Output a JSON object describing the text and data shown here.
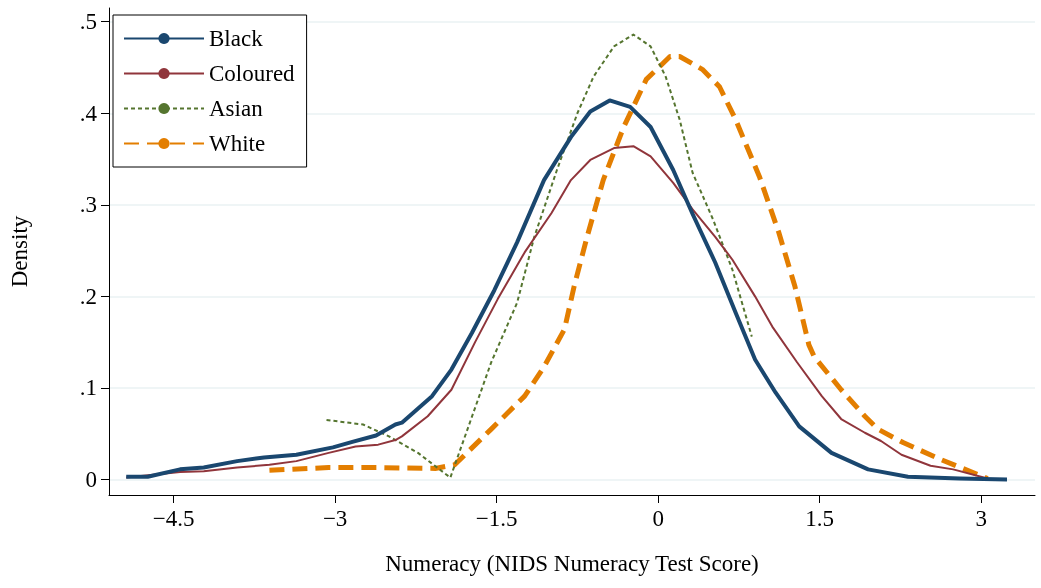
{
  "chart_data": {
    "type": "line",
    "xlabel": "Numeracy (NIDS Numeracy Test Score)",
    "ylabel": "Density",
    "xlim": [
      -5.1,
      3.5
    ],
    "xticks": [
      -4.5,
      -3,
      -1.5,
      0,
      1.5,
      3
    ],
    "ylim": [
      -0.017,
      0.515
    ],
    "yticks": [
      0,
      {
        "value": 0.1,
        "label": ".1"
      },
      {
        "value": 0.2,
        "label": ".2"
      },
      {
        "value": 0.3,
        "label": ".3"
      },
      {
        "value": 0.4,
        "label": ".4"
      },
      {
        "value": 0.5,
        "label": ".5"
      }
    ],
    "grid": "y",
    "legend": "top left",
    "marker": "none",
    "series": [
      {
        "name": "Black",
        "color": "#1a476f",
        "line_style": "solid",
        "x": [
          -4.94,
          -4.74,
          -4.44,
          -4.22,
          -3.91,
          -3.66,
          -3.36,
          -3.02,
          -2.84,
          -2.62,
          -2.44,
          -2.38,
          -2.1,
          -1.92,
          -1.73,
          -1.52,
          -1.31,
          -1.06,
          -0.81,
          -0.63,
          -0.45,
          -0.26,
          -0.07,
          0.14,
          0.32,
          0.53,
          0.72,
          0.9,
          1.09,
          1.31,
          1.61,
          1.95,
          2.32,
          2.8,
          3.24
        ],
        "values": [
          0.003,
          0.003,
          0.011,
          0.013,
          0.02,
          0.024,
          0.027,
          0.035,
          0.041,
          0.048,
          0.06,
          0.062,
          0.091,
          0.12,
          0.16,
          0.207,
          0.259,
          0.327,
          0.374,
          0.402,
          0.414,
          0.407,
          0.385,
          0.338,
          0.29,
          0.237,
          0.182,
          0.131,
          0.095,
          0.058,
          0.029,
          0.011,
          0.003,
          0.001,
          0.0
        ]
      },
      {
        "name": "Coloured",
        "color": "#90353b",
        "line_style": "solid",
        "x": [
          -4.94,
          -4.44,
          -4.22,
          -3.91,
          -3.61,
          -3.36,
          -3.06,
          -2.81,
          -2.6,
          -2.44,
          -2.38,
          -2.14,
          -1.92,
          -1.7,
          -1.49,
          -1.24,
          -0.99,
          -0.81,
          -0.63,
          -0.41,
          -0.23,
          -0.07,
          0.14,
          0.32,
          0.53,
          0.69,
          0.9,
          1.06,
          1.29,
          1.52,
          1.7,
          1.92,
          2.07,
          2.26,
          2.53,
          2.74,
          3.06
        ],
        "values": [
          0.002,
          0.008,
          0.009,
          0.013,
          0.016,
          0.02,
          0.029,
          0.036,
          0.038,
          0.043,
          0.047,
          0.069,
          0.098,
          0.15,
          0.197,
          0.248,
          0.291,
          0.327,
          0.349,
          0.362,
          0.364,
          0.353,
          0.324,
          0.295,
          0.265,
          0.24,
          0.2,
          0.167,
          0.128,
          0.091,
          0.066,
          0.051,
          0.042,
          0.027,
          0.015,
          0.011,
          0.001
        ]
      },
      {
        "name": "Asian",
        "color": "#55752f",
        "line_style": "dashed",
        "x": [
          -3.08,
          -2.74,
          -2.5,
          -2.23,
          -1.93,
          -1.77,
          -1.55,
          -1.31,
          -1.15,
          -0.94,
          -0.75,
          -0.6,
          -0.41,
          -0.23,
          -0.07,
          0.07,
          0.2,
          0.32,
          0.51,
          0.69,
          0.87
        ],
        "values": [
          0.065,
          0.06,
          0.047,
          0.029,
          0.002,
          0.055,
          0.128,
          0.193,
          0.265,
          0.338,
          0.4,
          0.44,
          0.473,
          0.486,
          0.473,
          0.44,
          0.393,
          0.335,
          0.284,
          0.229,
          0.156
        ]
      },
      {
        "name": "White",
        "color": "#e37e00",
        "line_style": "dashed",
        "x": [
          -3.61,
          -3.06,
          -2.6,
          -2.07,
          -1.89,
          -1.55,
          -1.24,
          -1.06,
          -0.87,
          -0.78,
          -0.66,
          -0.51,
          -0.32,
          -0.11,
          0.11,
          0.2,
          0.41,
          0.57,
          0.72,
          0.94,
          1.12,
          1.27,
          1.4,
          1.45,
          1.7,
          1.92,
          2.04,
          2.28,
          2.62,
          3.06
        ],
        "values": [
          0.01,
          0.013,
          0.013,
          0.012,
          0.016,
          0.055,
          0.091,
          0.123,
          0.164,
          0.211,
          0.265,
          0.327,
          0.385,
          0.437,
          0.462,
          0.462,
          0.448,
          0.429,
          0.393,
          0.331,
          0.27,
          0.211,
          0.147,
          0.134,
          0.098,
          0.069,
          0.055,
          0.04,
          0.022,
          0.001
        ]
      }
    ]
  }
}
